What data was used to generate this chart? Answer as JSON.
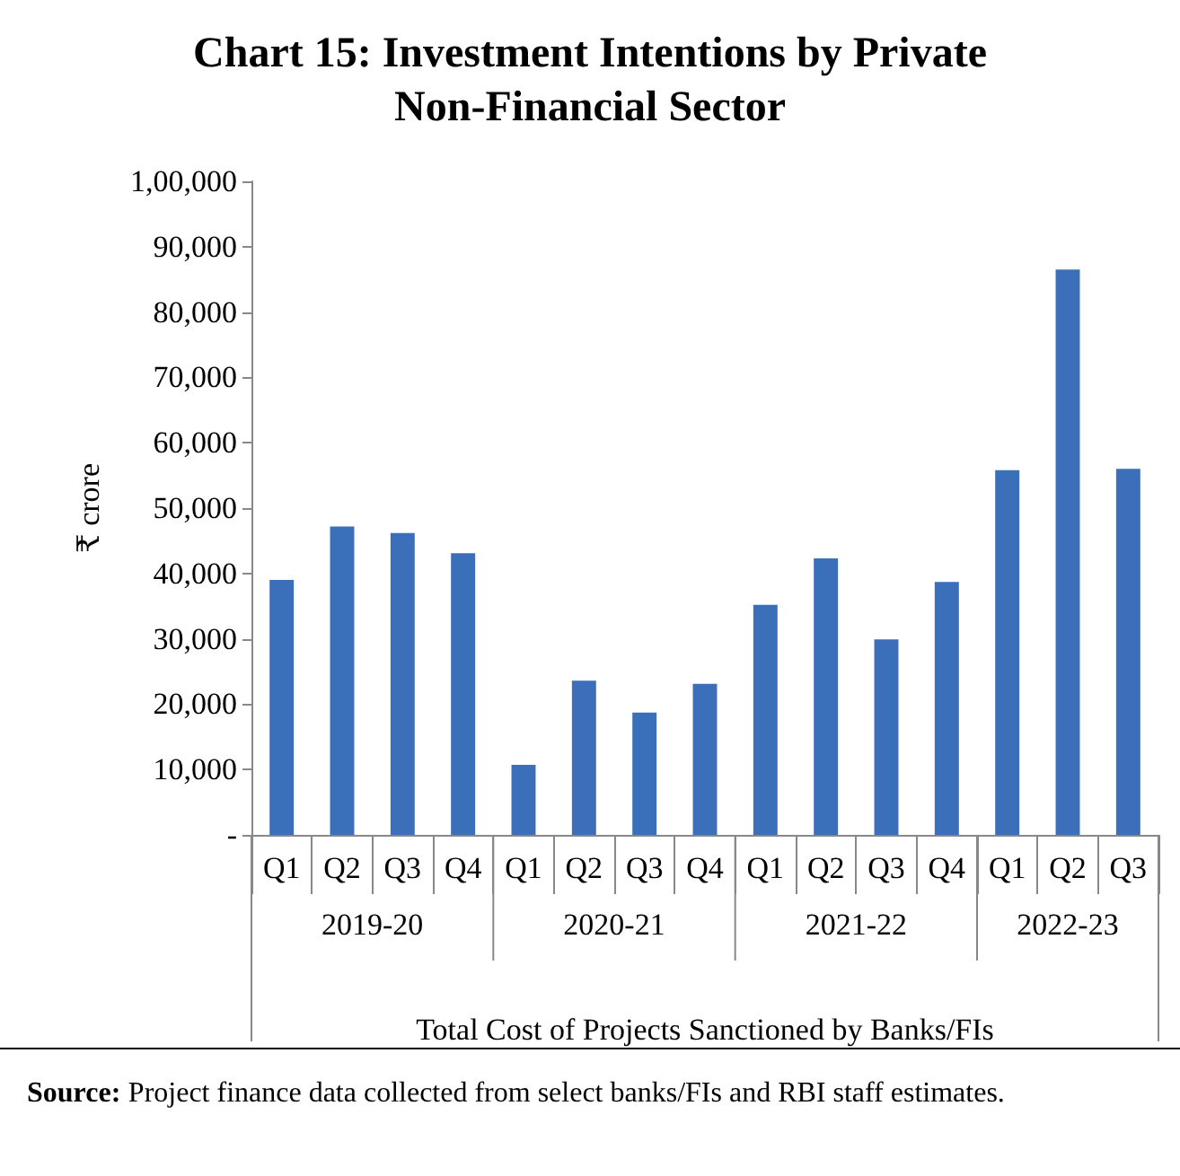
{
  "chart_data": {
    "type": "bar",
    "title": "Chart 15: Investment Intentions by Private\nNon-Financial Sector",
    "ylabel": "₹ crore",
    "xlabel": "Total Cost of Projects Sanctioned by Banks/FIs",
    "categories": [
      "Q1",
      "Q2",
      "Q3",
      "Q4",
      "Q1",
      "Q2",
      "Q3",
      "Q4",
      "Q1",
      "Q2",
      "Q3",
      "Q4",
      "Q1",
      "Q2",
      "Q3"
    ],
    "values": [
      39000,
      47200,
      46200,
      43100,
      10700,
      23600,
      18700,
      23100,
      35200,
      42300,
      29900,
      38700,
      55800,
      86500,
      56000
    ],
    "color": "#3b6fba",
    "ylim": [
      0,
      100000
    ],
    "yticks": [
      {
        "value": 0,
        "label": "-"
      },
      {
        "value": 10000,
        "label": "10,000"
      },
      {
        "value": 20000,
        "label": "20,000"
      },
      {
        "value": 30000,
        "label": "30,000"
      },
      {
        "value": 40000,
        "label": "40,000"
      },
      {
        "value": 50000,
        "label": "50,000"
      },
      {
        "value": 60000,
        "label": "60,000"
      },
      {
        "value": 70000,
        "label": "70,000"
      },
      {
        "value": 80000,
        "label": "80,000"
      },
      {
        "value": 90000,
        "label": "90,000"
      },
      {
        "value": 100000,
        "label": "1,00,000"
      }
    ],
    "annotations": [
      "2019-20",
      "2020-21",
      "2021-22",
      "2022-23",
      "Source: Project finance data collected from select banks/FIs and RBI staff estimates."
    ]
  }
}
